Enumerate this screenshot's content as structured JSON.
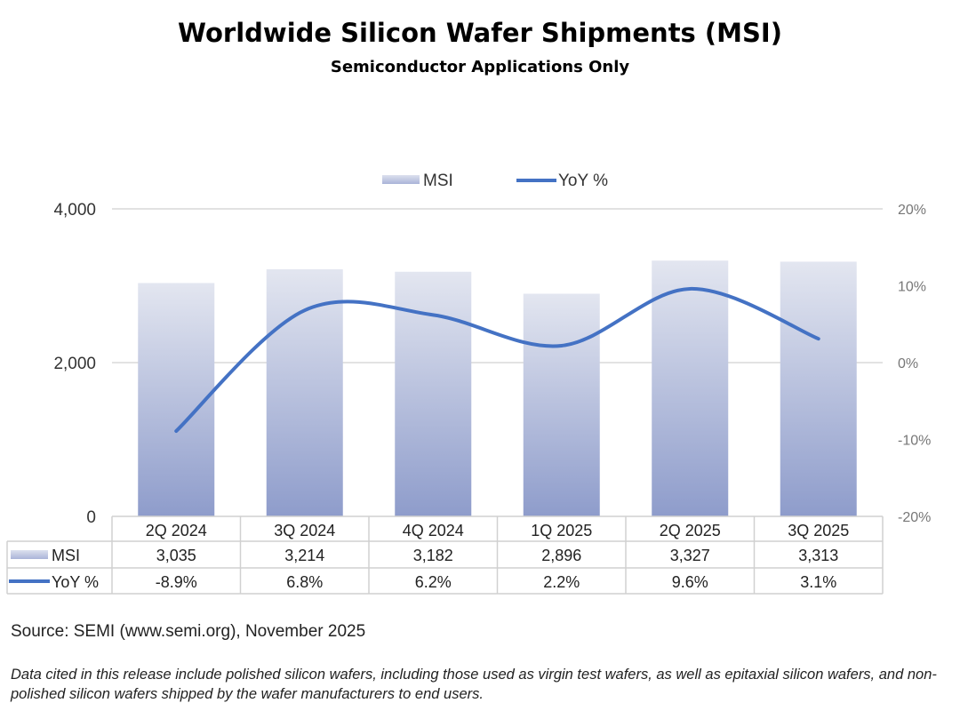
{
  "title": "Worldwide Silicon Wafer Shipments (MSI)",
  "subtitle": "Semiconductor Applications Only",
  "source": "Source: SEMI (www.semi.org), November 2025",
  "note": "Data cited in this release include polished silicon wafers, including those used as virgin test wafers, as well as epitaxial silicon wafers, and non-polished silicon wafers shipped by the wafer manufacturers to end users.",
  "colors": {
    "bar_top": "#e3e6f0",
    "bar_bottom": "#8e9ccb",
    "line": "#4472c4",
    "grid": "#d9d9d9"
  },
  "chart_data": {
    "type": "bar+line",
    "categories": [
      "2Q 2024",
      "3Q 2024",
      "4Q 2024",
      "1Q 2025",
      "2Q 2025",
      "3Q 2025"
    ],
    "series": [
      {
        "name": "MSI",
        "type": "bar",
        "axis": "left",
        "values": [
          3035,
          3214,
          3182,
          2896,
          3327,
          3313
        ],
        "labels": [
          "3,035",
          "3,214",
          "3,182",
          "2,896",
          "3,327",
          "3,313"
        ]
      },
      {
        "name": "YoY %",
        "type": "line",
        "smooth": true,
        "axis": "right",
        "values": [
          -8.9,
          6.8,
          6.2,
          2.2,
          9.6,
          3.1
        ],
        "labels": [
          "-8.9%",
          "6.8%",
          "6.2%",
          "2.2%",
          "9.6%",
          "3.1%"
        ]
      }
    ],
    "y_left": {
      "range": [
        0,
        4000
      ],
      "ticks": [
        "0",
        "2,000",
        "4,000"
      ],
      "tick_values": [
        0,
        2000,
        4000
      ]
    },
    "y_right": {
      "range": [
        -20,
        20
      ],
      "ticks": [
        "-20%",
        "-10%",
        "0%",
        "10%",
        "20%"
      ],
      "tick_values": [
        -20,
        -10,
        0,
        10,
        20
      ]
    },
    "grid": true,
    "legend": "top-center",
    "data_table": true
  }
}
